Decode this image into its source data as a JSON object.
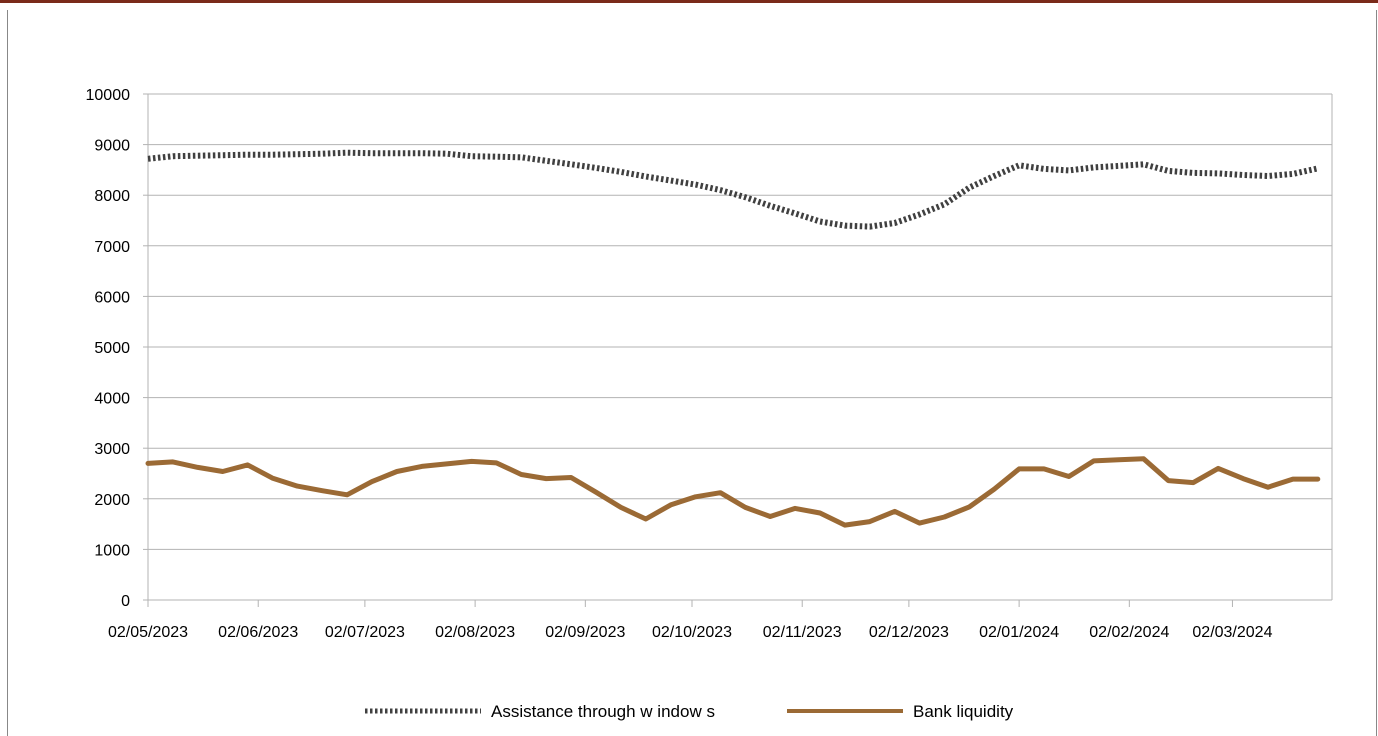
{
  "chart_data": {
    "type": "line",
    "title": "",
    "xlabel": "",
    "ylabel": "",
    "ylim": [
      0,
      10000
    ],
    "y_ticks": [
      "0",
      "1000",
      "2000",
      "3000",
      "4000",
      "5000",
      "6000",
      "7000",
      "8000",
      "9000",
      "10000"
    ],
    "x_tick_labels": [
      "02/05/2023",
      "02/06/2023",
      "02/07/2023",
      "02/08/2023",
      "02/09/2023",
      "02/10/2023",
      "02/11/2023",
      "02/12/2023",
      "02/01/2024",
      "02/02/2024",
      "02/03/2024"
    ],
    "x": [
      "2023-05-02",
      "2023-05-09",
      "2023-05-16",
      "2023-05-23",
      "2023-05-30",
      "2023-06-06",
      "2023-06-13",
      "2023-06-20",
      "2023-06-27",
      "2023-07-04",
      "2023-07-11",
      "2023-07-18",
      "2023-07-25",
      "2023-08-01",
      "2023-08-08",
      "2023-08-15",
      "2023-08-22",
      "2023-08-29",
      "2023-09-05",
      "2023-09-12",
      "2023-09-19",
      "2023-09-26",
      "2023-10-03",
      "2023-10-10",
      "2023-10-17",
      "2023-10-24",
      "2023-10-31",
      "2023-11-07",
      "2023-11-14",
      "2023-11-21",
      "2023-11-28",
      "2023-12-05",
      "2023-12-12",
      "2023-12-19",
      "2023-12-26",
      "2024-01-02",
      "2024-01-09",
      "2024-01-16",
      "2024-01-23",
      "2024-01-30",
      "2024-02-06",
      "2024-02-13",
      "2024-02-20",
      "2024-02-27",
      "2024-03-05",
      "2024-03-12",
      "2024-03-19",
      "2024-03-26"
    ],
    "series": [
      {
        "name": "Assistance through w indow s",
        "color": "#404040",
        "style": "dotted",
        "values": [
          8720,
          8770,
          8780,
          8790,
          8800,
          8800,
          8810,
          8820,
          8840,
          8830,
          8830,
          8830,
          8820,
          8770,
          8760,
          8750,
          8680,
          8610,
          8540,
          8460,
          8370,
          8290,
          8210,
          8100,
          7960,
          7790,
          7640,
          7480,
          7400,
          7380,
          7450,
          7620,
          7820,
          8150,
          8380,
          8590,
          8520,
          8490,
          8550,
          8580,
          8610,
          8480,
          8440,
          8430,
          8400,
          8380,
          8420,
          8530
        ]
      },
      {
        "name": "Bank liquidity",
        "color": "#9b6a35",
        "style": "solid",
        "values": [
          2700,
          2730,
          2620,
          2540,
          2670,
          2410,
          2250,
          2160,
          2080,
          2340,
          2540,
          2640,
          2690,
          2740,
          2710,
          2480,
          2400,
          2420,
          2130,
          1830,
          1600,
          1880,
          2040,
          2120,
          1830,
          1650,
          1810,
          1720,
          1480,
          1550,
          1750,
          1520,
          1640,
          1840,
          2190,
          2590,
          2590,
          2440,
          2750,
          2770,
          2790,
          2360,
          2320,
          2600,
          2400,
          2230,
          2390,
          2390
        ]
      }
    ],
    "grid": "horizontal",
    "legend_position": "bottom"
  }
}
